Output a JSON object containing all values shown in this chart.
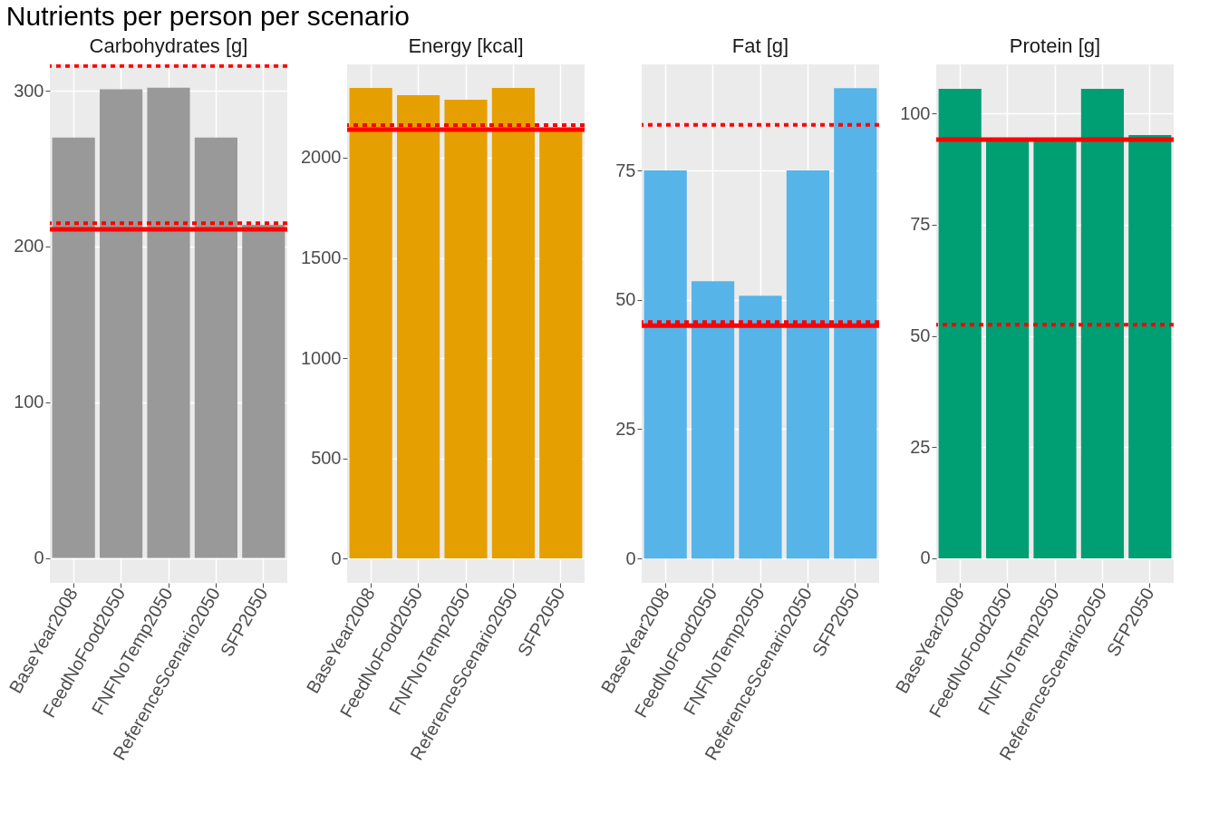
{
  "chart_data": [
    {
      "type": "bar",
      "title": "Carbohydrates [g]",
      "annotations": [
        "Nutrients per person per scenario"
      ],
      "categories": [
        "BaseYear2008",
        "FeedNoFood2050",
        "FNFNoTemp2050",
        "ReferenceScenario2050",
        "SFP2050"
      ],
      "values": [
        270,
        301,
        302,
        270,
        214
      ],
      "color": "#999999",
      "ylim": [
        -16,
        317
      ],
      "yticks": [
        0,
        100,
        200,
        300
      ],
      "grid": true,
      "ref_lines": [
        {
          "axis": "y",
          "value": 316,
          "color": "#ff0000",
          "line_style": "dotted"
        },
        {
          "axis": "y",
          "value": 215,
          "color": "#ff0000",
          "line_style": "dotted"
        },
        {
          "axis": "y",
          "value": 211,
          "color": "#ff0000",
          "line_style": "solid"
        }
      ]
    },
    {
      "type": "bar",
      "title": "Energy [kcal]",
      "categories": [
        "BaseYear2008",
        "FeedNoFood2050",
        "FNFNoTemp2050",
        "ReferenceScenario2050",
        "SFP2050"
      ],
      "values": [
        2348,
        2312,
        2290,
        2348,
        2140
      ],
      "color": "#e69f00",
      "ylim": [
        -122,
        2466
      ],
      "yticks": [
        0,
        500,
        1000,
        1500,
        2000
      ],
      "grid": true,
      "ref_lines": [
        {
          "axis": "y",
          "value": 2163,
          "color": "#ff0000",
          "line_style": "dotted"
        },
        {
          "axis": "y",
          "value": 2140,
          "color": "#ff0000",
          "line_style": "solid"
        }
      ]
    },
    {
      "type": "bar",
      "title": "Fat [g]",
      "categories": [
        "BaseYear2008",
        "FeedNoFood2050",
        "FNFNoTemp2050",
        "ReferenceScenario2050",
        "SFP2050"
      ],
      "values": [
        75,
        53.6,
        50.8,
        75,
        90.9
      ],
      "color": "#56b4e9",
      "ylim": [
        -4.7,
        95.5
      ],
      "yticks": [
        0,
        25,
        50,
        75
      ],
      "grid": true,
      "ref_lines": [
        {
          "axis": "y",
          "value": 83.8,
          "color": "#ff0000",
          "line_style": "dotted"
        },
        {
          "axis": "y",
          "value": 45.7,
          "color": "#ff0000",
          "line_style": "dotted"
        },
        {
          "axis": "y",
          "value": 45,
          "color": "#ff0000",
          "line_style": "solid"
        }
      ]
    },
    {
      "type": "bar",
      "title": "Protein [g]",
      "categories": [
        "BaseYear2008",
        "FeedNoFood2050",
        "FNFNoTemp2050",
        "ReferenceScenario2050",
        "SFP2050"
      ],
      "values": [
        105.5,
        94,
        94,
        105.5,
        95.1
      ],
      "color": "#009e73",
      "ylim": [
        -5.5,
        111
      ],
      "yticks": [
        0,
        25,
        50,
        75,
        100
      ],
      "grid": true,
      "ref_lines": [
        {
          "axis": "y",
          "value": 52.5,
          "color": "#ff0000",
          "line_style": "dotted"
        },
        {
          "axis": "y",
          "value": 94.1,
          "color": "#ff0000",
          "line_style": "solid"
        }
      ]
    }
  ]
}
